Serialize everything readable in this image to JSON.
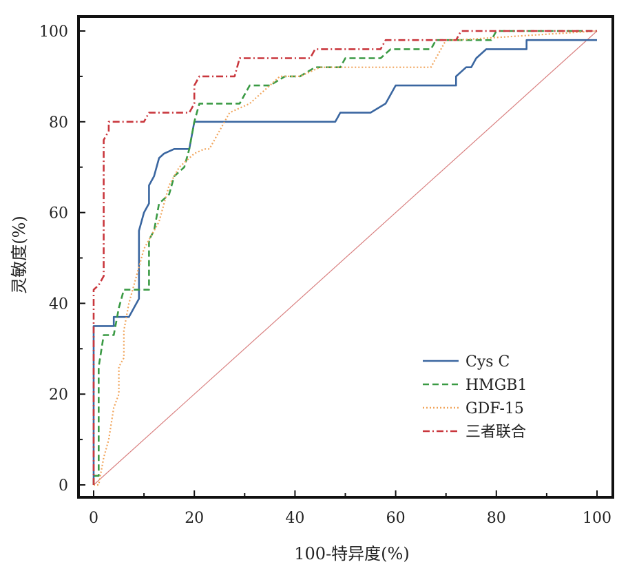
{
  "chart_data": {
    "type": "line",
    "title": "",
    "xlabel": "100-特异度(%)",
    "ylabel": "灵敏度(%)",
    "xlim": [
      0,
      100
    ],
    "ylim": [
      0,
      100
    ],
    "xticks": [
      0,
      20,
      40,
      60,
      80,
      100
    ],
    "yticks": [
      0,
      20,
      40,
      60,
      80,
      100
    ],
    "xtick_labels": [
      "0",
      "20",
      "40",
      "60",
      "80",
      "100"
    ],
    "ytick_labels": [
      "0",
      "20",
      "40",
      "60",
      "80",
      "100"
    ],
    "legend_position": "bottom-right",
    "reference_line": {
      "name": "diagonal",
      "x": [
        0,
        100
      ],
      "y": [
        0,
        100
      ],
      "color": "#d98080"
    },
    "series": [
      {
        "name": "Cys C",
        "color": "#3a66a0",
        "style": "solid",
        "x": [
          0,
          0,
          0,
          4,
          4,
          7,
          9,
          9,
          10,
          11,
          11,
          12,
          13,
          14,
          16,
          19,
          20,
          21,
          48,
          49,
          55,
          58,
          59,
          60,
          72,
          72,
          73,
          74,
          75,
          76,
          78,
          86,
          86,
          100
        ],
        "y": [
          0,
          35,
          35,
          35,
          37,
          37,
          41,
          56,
          60,
          62,
          66,
          68,
          72,
          73,
          74,
          74,
          80,
          80,
          80,
          82,
          82,
          84,
          86,
          88,
          88,
          90,
          91,
          92,
          92,
          94,
          96,
          96,
          98,
          98
        ]
      },
      {
        "name": "HMGB1",
        "color": "#3a9a44",
        "style": "dashed",
        "x": [
          0,
          0,
          1,
          1,
          2,
          4,
          5,
          6,
          11,
          11,
          12,
          13,
          15,
          16,
          18,
          19,
          20,
          21,
          29,
          30,
          31,
          35,
          38,
          41,
          44,
          49,
          50,
          57,
          59,
          67,
          68,
          79,
          80,
          100
        ],
        "y": [
          0,
          2,
          2,
          26,
          33,
          33,
          39,
          43,
          43,
          54,
          56,
          62,
          64,
          68,
          70,
          74,
          80,
          84,
          84,
          86,
          88,
          88,
          90,
          90,
          92,
          92,
          94,
          94,
          96,
          96,
          98,
          98,
          100,
          100
        ]
      },
      {
        "name": "GDF-15",
        "color": "#f1a55c",
        "style": "dotted",
        "x": [
          0,
          1,
          2,
          3,
          4,
          4,
          5,
          5,
          6,
          6,
          7,
          8,
          9,
          10,
          11,
          12,
          13,
          14,
          15,
          17,
          20,
          22,
          23,
          26,
          27,
          31,
          37,
          41,
          45,
          50,
          67,
          68,
          70,
          72,
          100
        ],
        "y": [
          0,
          0,
          6,
          10,
          17,
          17,
          20,
          26,
          28,
          34,
          40,
          44,
          48,
          52,
          54,
          56,
          58,
          62,
          66,
          70,
          73,
          74,
          74,
          80,
          82,
          84,
          90,
          90,
          92,
          92,
          92,
          94,
          98,
          98,
          100
        ]
      },
      {
        "name": "三者联合",
        "color": "#c9373d",
        "style": "dashdot",
        "x": [
          0,
          0,
          1,
          2,
          2,
          3,
          3,
          4,
          10,
          11,
          19,
          20,
          20,
          21,
          28,
          29,
          43,
          44,
          57,
          58,
          72,
          73,
          100
        ],
        "y": [
          0,
          43,
          44,
          46,
          76,
          78,
          80,
          80,
          80,
          82,
          82,
          84,
          88,
          90,
          90,
          94,
          94,
          96,
          96,
          98,
          98,
          100,
          100
        ]
      }
    ]
  }
}
